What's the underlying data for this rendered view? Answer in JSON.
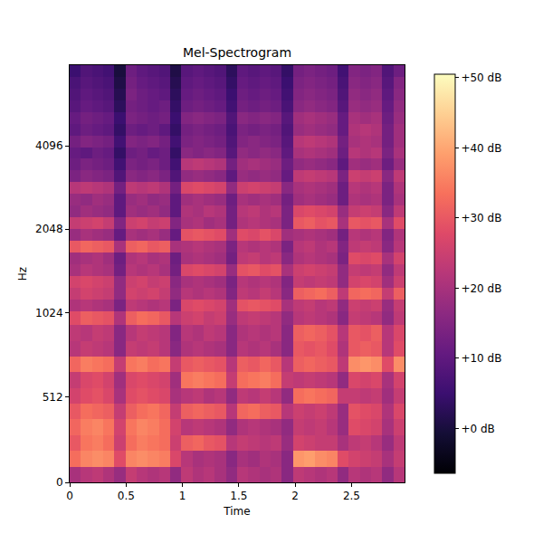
{
  "chart_data": {
    "type": "heatmap",
    "title": "Mel-Spectrogram",
    "x_label": "Time",
    "y_label": "Hz",
    "xlim": [
      0,
      2.97
    ],
    "xticks": [
      0,
      0.5,
      1,
      1.5,
      2,
      2.5
    ],
    "ylim": [
      0,
      8000
    ],
    "yticks": [
      0,
      512,
      1024,
      2048,
      4096
    ],
    "colorbar": {
      "range": [
        -6.4,
        50.5
      ],
      "ticks": [
        {
          "value": 0,
          "label": "+0 dB"
        },
        {
          "value": 10,
          "label": "+10 dB"
        },
        {
          "value": 20,
          "label": "+20 dB"
        },
        {
          "value": 30,
          "label": "+30 dB"
        },
        {
          "value": 40,
          "label": "+40 dB"
        },
        {
          "value": 50,
          "label": "+50 dB"
        }
      ]
    },
    "cells": [
      [
        20,
        22,
        23,
        21,
        18,
        24,
        22,
        21,
        22,
        17,
        23,
        21,
        22,
        20,
        17,
        22,
        21,
        20,
        21,
        16,
        23,
        22,
        21,
        22,
        17,
        22,
        21,
        22,
        17,
        22
      ],
      [
        33,
        36,
        37,
        36,
        28,
        36,
        37,
        36,
        35,
        27,
        22,
        20,
        21,
        20,
        16,
        20,
        19,
        21,
        20,
        16,
        38,
        39,
        37,
        36,
        28,
        26,
        25,
        24,
        20,
        24
      ],
      [
        30,
        34,
        35,
        33,
        25,
        33,
        35,
        34,
        33,
        25,
        31,
        32,
        30,
        29,
        22,
        24,
        23,
        22,
        23,
        18,
        26,
        25,
        24,
        24,
        20,
        23,
        24,
        22,
        18,
        23
      ],
      [
        32,
        35,
        36,
        34,
        26,
        34,
        36,
        35,
        33,
        26,
        22,
        23,
        22,
        21,
        17,
        21,
        22,
        21,
        20,
        17,
        24,
        23,
        24,
        22,
        18,
        28,
        27,
        26,
        20,
        25
      ],
      [
        30,
        33,
        32,
        31,
        24,
        31,
        33,
        34,
        32,
        24,
        31,
        32,
        31,
        30,
        22,
        32,
        33,
        31,
        30,
        22,
        25,
        24,
        25,
        23,
        18,
        29,
        28,
        27,
        21,
        27
      ],
      [
        26,
        28,
        29,
        27,
        20,
        28,
        29,
        28,
        27,
        20,
        22,
        23,
        21,
        22,
        17,
        23,
        22,
        24,
        22,
        17,
        33,
        34,
        33,
        32,
        24,
        24,
        23,
        24,
        19,
        24
      ],
      [
        24,
        27,
        28,
        26,
        19,
        27,
        28,
        27,
        26,
        19,
        34,
        35,
        34,
        33,
        24,
        33,
        34,
        35,
        33,
        24,
        23,
        24,
        23,
        22,
        17,
        27,
        26,
        27,
        20,
        26
      ],
      [
        32,
        35,
        34,
        33,
        24,
        34,
        35,
        33,
        34,
        24,
        30,
        31,
        30,
        29,
        22,
        31,
        30,
        32,
        30,
        22,
        31,
        32,
        31,
        30,
        23,
        37,
        38,
        37,
        28,
        37
      ],
      [
        22,
        24,
        23,
        22,
        16,
        24,
        23,
        24,
        22,
        16,
        21,
        22,
        21,
        20,
        16,
        22,
        21,
        22,
        20,
        16,
        30,
        29,
        30,
        28,
        21,
        30,
        31,
        30,
        22,
        28
      ],
      [
        23,
        22,
        24,
        23,
        16,
        22,
        24,
        23,
        22,
        15,
        22,
        21,
        23,
        22,
        16,
        21,
        22,
        21,
        22,
        16,
        31,
        32,
        31,
        29,
        22,
        30,
        29,
        31,
        22,
        27
      ],
      [
        28,
        31,
        30,
        29,
        21,
        31,
        33,
        32,
        30,
        22,
        25,
        26,
        24,
        25,
        18,
        23,
        24,
        23,
        22,
        17,
        22,
        23,
        22,
        21,
        16,
        24,
        23,
        22,
        17,
        23
      ],
      [
        21,
        22,
        21,
        20,
        14,
        23,
        22,
        21,
        22,
        14,
        27,
        28,
        27,
        26,
        19,
        29,
        30,
        29,
        28,
        20,
        23,
        24,
        22,
        23,
        17,
        25,
        24,
        25,
        18,
        24
      ],
      [
        24,
        26,
        25,
        24,
        17,
        26,
        25,
        26,
        24,
        17,
        22,
        21,
        22,
        21,
        15,
        23,
        22,
        24,
        22,
        16,
        31,
        32,
        33,
        31,
        23,
        32,
        33,
        32,
        24,
        31
      ],
      [
        26,
        27,
        26,
        25,
        17,
        25,
        26,
        24,
        25,
        16,
        20,
        21,
        20,
        19,
        14,
        22,
        21,
        22,
        21,
        15,
        24,
        23,
        24,
        23,
        17,
        26,
        27,
        26,
        19,
        25
      ],
      [
        20,
        22,
        21,
        20,
        13,
        22,
        21,
        22,
        20,
        13,
        27,
        28,
        27,
        26,
        18,
        29,
        30,
        28,
        29,
        20,
        25,
        26,
        25,
        24,
        17,
        24,
        23,
        24,
        17,
        23
      ],
      [
        19,
        20,
        21,
        19,
        12,
        21,
        22,
        20,
        21,
        12,
        20,
        21,
        20,
        19,
        13,
        23,
        24,
        22,
        23,
        16,
        21,
        22,
        21,
        20,
        14,
        28,
        27,
        28,
        20,
        26
      ],
      [
        30,
        32,
        31,
        30,
        20,
        31,
        32,
        30,
        31,
        20,
        21,
        22,
        21,
        20,
        14,
        22,
        21,
        22,
        21,
        14,
        22,
        23,
        21,
        22,
        15,
        23,
        24,
        23,
        16,
        22
      ],
      [
        18,
        20,
        19,
        18,
        11,
        20,
        19,
        20,
        18,
        11,
        29,
        30,
        29,
        28,
        19,
        28,
        27,
        29,
        27,
        19,
        20,
        21,
        20,
        19,
        13,
        22,
        21,
        22,
        15,
        21
      ],
      [
        24,
        25,
        26,
        24,
        15,
        25,
        26,
        24,
        25,
        15,
        20,
        21,
        19,
        20,
        13,
        21,
        22,
        21,
        20,
        14,
        30,
        31,
        29,
        30,
        20,
        30,
        29,
        30,
        20,
        28
      ],
      [
        17,
        19,
        18,
        17,
        10,
        19,
        18,
        19,
        17,
        10,
        21,
        20,
        22,
        21,
        13,
        22,
        23,
        21,
        22,
        14,
        27,
        28,
        27,
        26,
        18,
        24,
        25,
        24,
        16,
        23
      ],
      [
        18,
        17,
        19,
        18,
        10,
        18,
        19,
        17,
        18,
        10,
        19,
        20,
        19,
        18,
        12,
        20,
        19,
        20,
        19,
        13,
        19,
        20,
        19,
        18,
        12,
        21,
        20,
        21,
        14,
        20
      ],
      [
        22,
        23,
        22,
        21,
        13,
        23,
        22,
        23,
        21,
        13,
        27,
        28,
        27,
        26,
        17,
        25,
        26,
        25,
        24,
        16,
        20,
        21,
        20,
        19,
        12,
        22,
        21,
        22,
        14,
        21
      ],
      [
        14,
        16,
        15,
        14,
        8,
        16,
        15,
        16,
        14,
        8,
        17,
        18,
        17,
        16,
        10,
        18,
        17,
        18,
        17,
        11,
        23,
        24,
        23,
        22,
        14,
        25,
        24,
        25,
        16,
        23
      ],
      [
        12,
        14,
        13,
        12,
        6,
        14,
        13,
        14,
        12,
        6,
        22,
        23,
        22,
        21,
        13,
        19,
        20,
        19,
        18,
        12,
        17,
        18,
        17,
        16,
        10,
        19,
        18,
        19,
        12,
        18
      ],
      [
        11,
        10,
        12,
        11,
        4,
        12,
        13,
        11,
        12,
        4,
        16,
        15,
        16,
        15,
        9,
        17,
        16,
        17,
        16,
        10,
        20,
        21,
        20,
        19,
        12,
        22,
        21,
        22,
        14,
        20
      ],
      [
        13,
        15,
        14,
        13,
        6,
        15,
        14,
        15,
        13,
        6,
        14,
        15,
        14,
        13,
        8,
        15,
        16,
        15,
        14,
        9,
        22,
        23,
        22,
        21,
        13,
        20,
        21,
        20,
        13,
        19
      ],
      [
        10,
        12,
        11,
        10,
        4,
        12,
        11,
        12,
        10,
        4,
        13,
        14,
        13,
        12,
        7,
        14,
        13,
        14,
        13,
        8,
        18,
        19,
        18,
        17,
        11,
        21,
        22,
        21,
        13,
        19
      ],
      [
        11,
        13,
        12,
        11,
        5,
        14,
        13,
        12,
        13,
        5,
        15,
        16,
        15,
        14,
        8,
        16,
        15,
        16,
        15,
        9,
        19,
        20,
        19,
        18,
        11,
        20,
        19,
        20,
        12,
        18
      ],
      [
        9,
        11,
        10,
        9,
        3,
        13,
        12,
        11,
        12,
        4,
        12,
        13,
        12,
        11,
        6,
        13,
        12,
        13,
        12,
        7,
        16,
        17,
        16,
        15,
        9,
        18,
        17,
        18,
        11,
        17
      ],
      [
        8,
        10,
        9,
        8,
        2,
        14,
        12,
        11,
        10,
        3,
        11,
        12,
        11,
        10,
        5,
        12,
        11,
        12,
        11,
        6,
        15,
        16,
        15,
        14,
        8,
        17,
        16,
        17,
        10,
        16
      ],
      [
        7,
        9,
        8,
        7,
        1,
        13,
        11,
        10,
        9,
        2,
        10,
        11,
        10,
        9,
        4,
        11,
        10,
        11,
        10,
        5,
        14,
        15,
        14,
        13,
        7,
        16,
        15,
        16,
        9,
        15
      ],
      [
        5,
        8,
        7,
        6,
        0,
        12,
        10,
        9,
        8,
        1,
        9,
        10,
        9,
        8,
        3,
        10,
        9,
        10,
        9,
        4,
        13,
        14,
        13,
        12,
        6,
        15,
        14,
        15,
        8,
        12
      ]
    ]
  }
}
